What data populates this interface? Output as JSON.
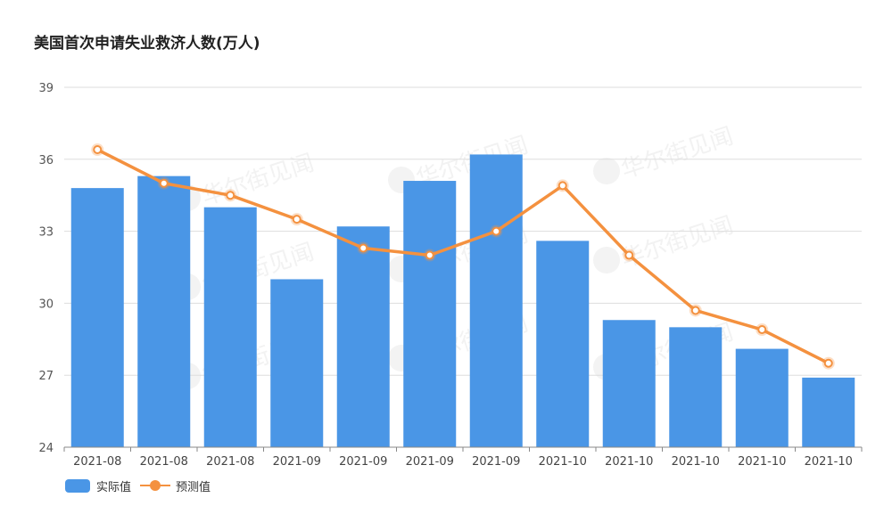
{
  "chart_data": {
    "type": "bar",
    "title": "美国首次申请失业救济人数(万人)",
    "categories": [
      "2021-08",
      "2021-08",
      "2021-08",
      "2021-09",
      "2021-09",
      "2021-09",
      "2021-09",
      "2021-10",
      "2021-10",
      "2021-10",
      "2021-10",
      "2021-10"
    ],
    "ylim": [
      24,
      39
    ],
    "yticks": [
      24,
      27,
      30,
      33,
      36,
      39
    ],
    "grid": true,
    "legend_position": "bottom-left",
    "watermark": "华尔街见闻",
    "series": [
      {
        "name": "实际值",
        "type": "bar",
        "color": "#4a96e6",
        "values": [
          34.8,
          35.3,
          34.0,
          31.0,
          33.2,
          35.1,
          36.2,
          32.6,
          29.3,
          29.0,
          28.1,
          26.9
        ]
      },
      {
        "name": "预测值",
        "type": "line",
        "color": "#f4913f",
        "values": [
          36.4,
          35.0,
          34.5,
          33.5,
          32.3,
          32.0,
          33.0,
          34.9,
          32.0,
          29.7,
          28.9,
          27.5
        ]
      }
    ]
  }
}
